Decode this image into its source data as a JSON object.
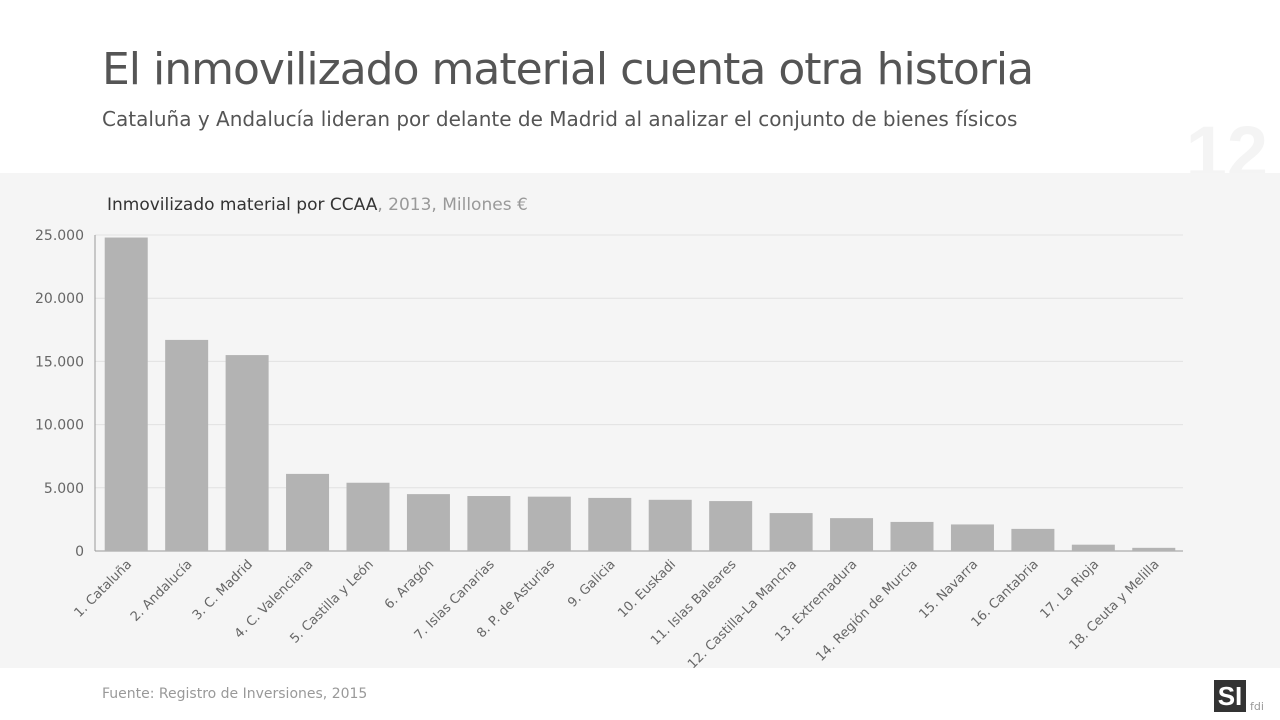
{
  "header": {
    "title": "El inmovilizado material cuenta otra historia",
    "subtitle": "Cataluña y Andalucía lideran por delante de Madrid al analizar el conjunto de bienes físicos",
    "page_number": "12"
  },
  "chart_data": {
    "type": "bar",
    "title": "Inmovilizado material por CCAA",
    "title_suffix": ", 2013, Millones €",
    "categories": [
      "1. Cataluña",
      "2. Andalucía",
      "3. C. Madrid",
      "4. C. Valenciana",
      "5. Castilla y León",
      "6. Aragón",
      "7. Islas Canarias",
      "8. P. de Asturias",
      "9. Galicia",
      "10. Euskadi",
      "11. Islas Baleares",
      "12. Castilla-La Mancha",
      "13. Extremadura",
      "14. Región de Murcia",
      "15. Navarra",
      "16. Cantabria",
      "17. La Rioja",
      "18. Ceuta y Melilla"
    ],
    "values": [
      24800,
      16700,
      15500,
      6100,
      5400,
      4500,
      4350,
      4300,
      4200,
      4050,
      3950,
      3000,
      2600,
      2300,
      2100,
      1750,
      500,
      250
    ],
    "ylim": [
      0,
      25000
    ],
    "yticks": [
      0,
      5000,
      10000,
      15000,
      20000,
      25000
    ],
    "ytick_labels": [
      "0",
      "5.000",
      "10.000",
      "15.000",
      "20.000",
      "25.000"
    ],
    "grid": true,
    "bar_color": "#b3b3b3"
  },
  "footer": {
    "source": "Fuente: Registro de Inversiones, 2015",
    "logo": "SI",
    "logo_suffix": "fdi"
  }
}
